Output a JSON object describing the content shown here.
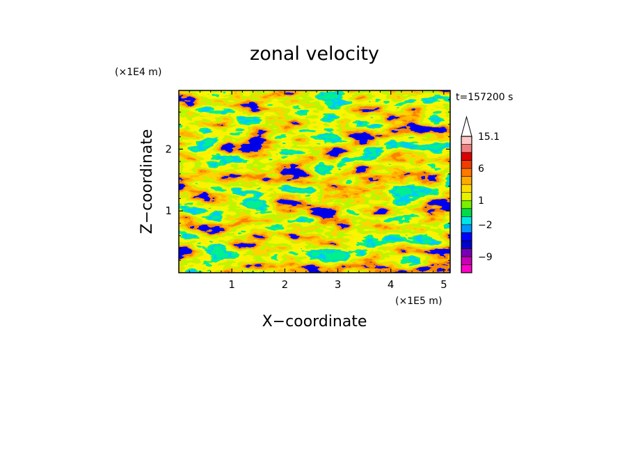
{
  "chart_data": {
    "type": "heatmap",
    "title": "zonal velocity",
    "xlabel": "X−coordinate",
    "ylabel": "Z−coordinate",
    "x_unit": "(×1E5 m)",
    "y_unit": "(×1E4 m)",
    "time_label": "t=157200 s",
    "xlim": [
      0,
      5.12
    ],
    "ylim": [
      0,
      2.95
    ],
    "x_ticks": [
      1,
      2,
      3,
      4,
      5
    ],
    "y_ticks": [
      1,
      2
    ],
    "x_tick_labels": [
      "1",
      "2",
      "3",
      "4",
      "5"
    ],
    "y_tick_labels": [
      "1",
      "2"
    ],
    "colorbar": {
      "labels": [
        {
          "value": 15.1,
          "text": "15.1"
        },
        {
          "value": 6,
          "text": "6"
        },
        {
          "value": 1,
          "text": "1"
        },
        {
          "value": -2,
          "text": "−2"
        },
        {
          "value": -9,
          "text": "−9"
        }
      ],
      "colors": [
        "#ff00c8",
        "#c800b4",
        "#7800b4",
        "#0000c8",
        "#0000ff",
        "#0096ff",
        "#00e6e6",
        "#00dc46",
        "#78f000",
        "#e6f000",
        "#ffdc00",
        "#ffaa00",
        "#ff7800",
        "#f03c00",
        "#dc0000",
        "#f08080",
        "#ffc8c8",
        "#ffffff"
      ],
      "extend": "max"
    },
    "grid": false
  }
}
